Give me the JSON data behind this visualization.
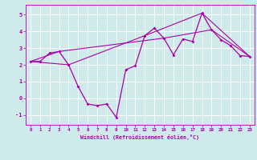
{
  "xlabel": "Windchill (Refroidissement éolien,°C)",
  "background_color": "#ceeaea",
  "line_color": "#aa00aa",
  "grid_color": "#ffffff",
  "xlim": [
    -0.5,
    23.5
  ],
  "ylim": [
    -1.6,
    5.6
  ],
  "yticks": [
    -1,
    0,
    1,
    2,
    3,
    4,
    5
  ],
  "xticks": [
    0,
    1,
    2,
    3,
    4,
    5,
    6,
    7,
    8,
    9,
    10,
    11,
    12,
    13,
    14,
    15,
    16,
    17,
    18,
    19,
    20,
    21,
    22,
    23
  ],
  "series1_x": [
    0,
    1,
    2,
    3,
    4,
    5,
    6,
    7,
    8,
    9,
    10,
    11,
    12,
    13,
    14,
    15,
    16,
    17,
    18,
    19,
    20,
    21,
    22,
    23
  ],
  "series1_y": [
    2.2,
    2.2,
    2.7,
    2.8,
    2.0,
    0.7,
    -0.35,
    -0.45,
    -0.35,
    -1.15,
    1.7,
    1.95,
    3.75,
    4.2,
    3.6,
    2.6,
    3.55,
    3.4,
    5.1,
    4.1,
    3.5,
    3.15,
    2.55,
    2.5
  ],
  "series2_x": [
    0,
    4,
    12,
    18,
    23
  ],
  "series2_y": [
    2.2,
    2.0,
    3.75,
    5.1,
    2.5
  ],
  "series3_x": [
    0,
    3,
    14,
    19,
    23
  ],
  "series3_y": [
    2.2,
    2.8,
    3.6,
    4.1,
    2.5
  ]
}
